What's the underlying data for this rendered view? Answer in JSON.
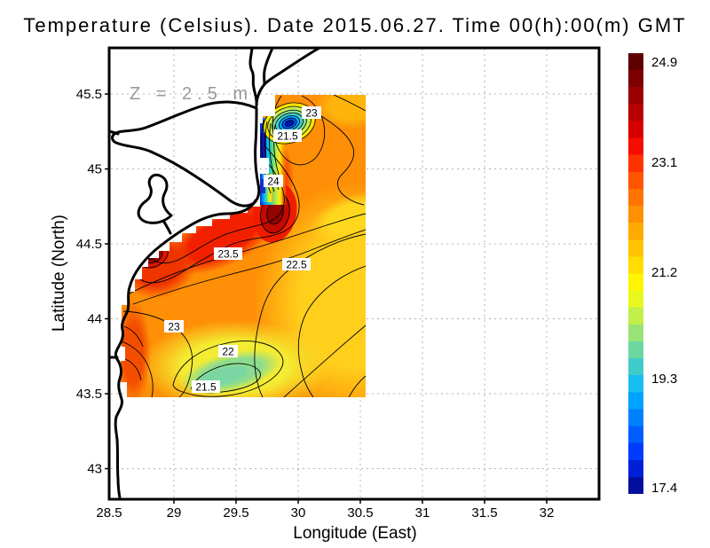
{
  "page": {
    "title": "Temperature (Celsius). Date 2015.06.27. Time 00(h):00(m) GMT"
  },
  "chart_data": {
    "type": "heatmap",
    "subtype": "filled-contour-map-with-coastline",
    "title": "Temperature (Celsius). Date 2015.06.27. Time 00(h):00(m) GMT",
    "xlabel": "Longitude (East)",
    "ylabel": "Latitude (North)",
    "annotation": "Z = 2.5 m",
    "units": "Celsius",
    "grid": true,
    "x_ticks": [
      "28.5",
      "29",
      "29.5",
      "30",
      "30.5",
      "31",
      "31.5",
      "32"
    ],
    "y_ticks": [
      "45.5",
      "45",
      "44.5",
      "44",
      "43.5",
      "43"
    ],
    "x_range": [
      28.48,
      32.42
    ],
    "y_range": [
      42.9,
      45.81
    ],
    "field": {
      "lon_extent": [
        28.6,
        30.55
      ],
      "lat_extent": [
        43.46,
        45.49
      ],
      "value_min": 17.4,
      "value_max": 24.9
    },
    "colorbar": {
      "labels": [
        "24.9",
        "23.1",
        "21.2",
        "19.3",
        "17.4"
      ],
      "max": 24.9,
      "min": 17.4,
      "stops": [
        "#5e0000",
        "#7c0000",
        "#9a0000",
        "#b80000",
        "#d60000",
        "#f40d00",
        "#ff3300",
        "#ff5500",
        "#ff7400",
        "#ff9000",
        "#ffaa00",
        "#ffc400",
        "#ffdd00",
        "#fff500",
        "#e8f81e",
        "#c2ef49",
        "#97e375",
        "#6cd79f",
        "#41cbc8",
        "#16bff0",
        "#00a2ff",
        "#0080ff",
        "#005dff",
        "#003bff",
        "#0020d8",
        "#000f9e"
      ]
    },
    "contour_interval": 0.25,
    "contour_labels": [
      {
        "value": "23",
        "lon": 30.1,
        "lat": 45.38
      },
      {
        "value": "21.5",
        "lon": 29.91,
        "lat": 45.22
      },
      {
        "value": "24",
        "lon": 29.79,
        "lat": 44.92
      },
      {
        "value": "23.5",
        "lon": 29.43,
        "lat": 44.44
      },
      {
        "value": "22.5",
        "lon": 29.98,
        "lat": 44.36
      },
      {
        "value": "23",
        "lon": 29.0,
        "lat": 43.95
      },
      {
        "value": "22",
        "lon": 29.43,
        "lat": 43.78
      },
      {
        "value": "21.5",
        "lon": 29.25,
        "lat": 43.55
      }
    ],
    "features": [
      {
        "name": "cold-eddy",
        "lon": 29.93,
        "lat": 45.3,
        "approx_temp": 17.5
      },
      {
        "name": "coastal-upwelling-strip",
        "lon": 29.75,
        "lat": 45.15,
        "approx_temp": 19.0
      },
      {
        "name": "warm-core",
        "lon": 29.81,
        "lat": 44.71,
        "approx_temp": 24.9
      },
      {
        "name": "warm-spot",
        "lon": 28.83,
        "lat": 44.42,
        "approx_temp": 24.7
      },
      {
        "name": "cool-patch",
        "lon": 29.44,
        "lat": 43.64,
        "approx_temp": 21.3
      }
    ]
  }
}
